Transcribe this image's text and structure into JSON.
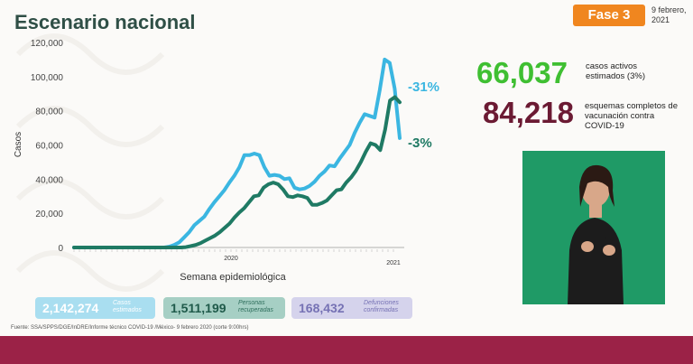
{
  "title": "Escenario nacional",
  "phase_label": "Fase 3",
  "date": "9 febrero, 2021",
  "kpis": {
    "active_value": "66,037",
    "active_label": "casos activos estimados (3%)",
    "vaccine_value": "84,218",
    "vaccine_label": "esquemas completos de vacunación contra COVID-19"
  },
  "stats": {
    "cases_value": "2,142,274",
    "cases_label": "Casos estimados",
    "recovered_value": "1,511,199",
    "recovered_label": "Personas recuperadas",
    "deaths_value": "168,432",
    "deaths_label": "Defunciones confirmadas"
  },
  "source": "Fuente: SSA/SPPS/DGE/InDRE/Informe técnico COVID-19 /México- 9 febrero 2020 (corte 9:00hrs)",
  "colors": {
    "estimated": "#3bb6e1",
    "confirmed": "#1f7a64",
    "active_green": "#3fbf32",
    "vaccine_maroon": "#6b1a33",
    "footer": "#9b2247"
  },
  "chart_data": {
    "type": "line",
    "xlabel": "Semana epidemiológica",
    "ylabel": "Casos",
    "ylim": [
      0,
      120000
    ],
    "y_ticks": [
      "0",
      "20,000",
      "40,000",
      "60,000",
      "80,000",
      "100,000",
      "120,000"
    ],
    "x_labels": [
      "2020",
      "2021"
    ],
    "annotations": [
      "-31%",
      "-3%"
    ],
    "series": [
      {
        "values": [
          0,
          0,
          0,
          0,
          0,
          0,
          0,
          0,
          0,
          0,
          0,
          0,
          0,
          0,
          0,
          0,
          0,
          0,
          0,
          500,
          1500,
          3000,
          6000,
          9000,
          13000,
          15500,
          18000,
          22500,
          26500,
          30000,
          33500,
          38000,
          42000,
          47000,
          54000,
          54000,
          55000,
          54000,
          47000,
          42000,
          42500,
          42000,
          40000,
          40500,
          35000,
          34000,
          34500,
          36000,
          38500,
          42000,
          44500,
          48000,
          47500,
          52000,
          56000,
          60000,
          67000,
          73000,
          78000,
          77000,
          76000,
          92000,
          110000,
          108000,
          93000,
          64000
        ]
      },
      {
        "values": [
          0,
          0,
          0,
          0,
          0,
          0,
          0,
          0,
          0,
          0,
          0,
          0,
          0,
          0,
          0,
          0,
          0,
          0,
          0,
          0,
          0,
          0,
          0,
          200,
          800,
          1500,
          2500,
          4000,
          5500,
          7000,
          9000,
          11500,
          14000,
          17500,
          20500,
          23000,
          26500,
          30000,
          30500,
          35000,
          37000,
          38000,
          37000,
          34000,
          30000,
          29500,
          30500,
          30000,
          29000,
          25000,
          25000,
          26000,
          27500,
          30500,
          33500,
          34000,
          38000,
          41000,
          45000,
          50000,
          56000,
          61000,
          60000,
          57000,
          69000,
          86000,
          88000,
          85000
        ]
      }
    ]
  }
}
